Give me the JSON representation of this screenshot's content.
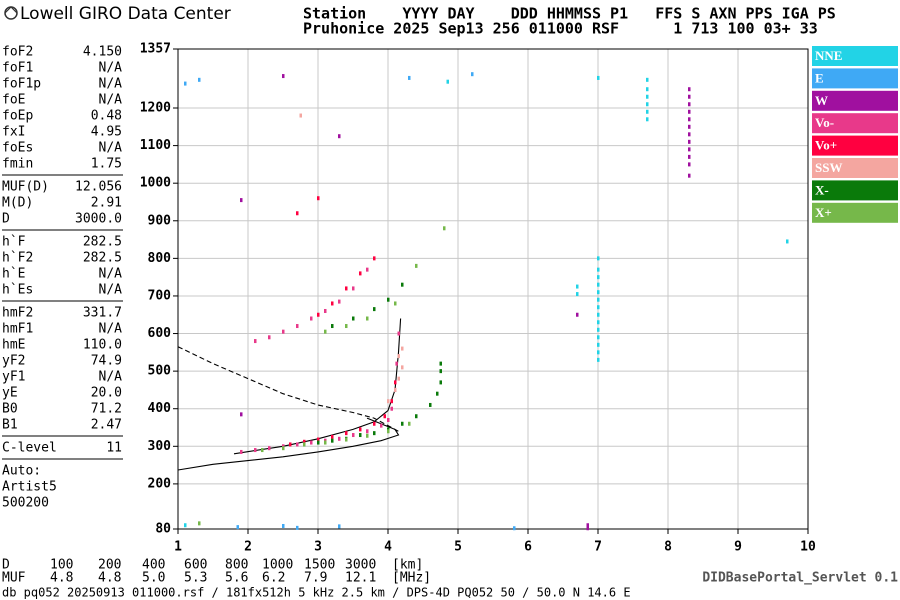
{
  "header": {
    "logo": "Lowell GIRO Data Center",
    "line1": "Station    YYYY DAY    DDD HHMMSS P1   FFS S AXN PPS IGA PS",
    "line2": "Pruhonice 2025 Sep13 256 011000 RSF      1 713 100 03+ 33"
  },
  "parameters": [
    [
      [
        "foF2",
        "4.150"
      ],
      [
        "foF1",
        "N/A"
      ],
      [
        "foF1p",
        "N/A"
      ],
      [
        "foE",
        "N/A"
      ],
      [
        "foEp",
        "0.48"
      ],
      [
        "fxI",
        "4.95"
      ],
      [
        "foEs",
        "N/A"
      ],
      [
        "fmin",
        "1.75"
      ]
    ],
    [
      [
        "MUF(D)",
        "12.056"
      ],
      [
        "M(D)",
        "2.91"
      ],
      [
        "D",
        "3000.0"
      ]
    ],
    [
      [
        "h`F",
        "282.5"
      ],
      [
        "h`F2",
        "282.5"
      ],
      [
        "h`E",
        "N/A"
      ],
      [
        "h`Es",
        "N/A"
      ]
    ],
    [
      [
        "hmF2",
        "331.7"
      ],
      [
        "hmF1",
        "N/A"
      ],
      [
        "hmE",
        "110.0"
      ],
      [
        "yF2",
        "74.9"
      ],
      [
        "yF1",
        "N/A"
      ],
      [
        "yE",
        "20.0"
      ],
      [
        "B0",
        "71.2"
      ],
      [
        "B1",
        "2.47"
      ]
    ],
    [
      [
        "C-level",
        "11"
      ]
    ]
  ],
  "notes": [
    "Auto:",
    "Artist5",
    "500200"
  ],
  "scale_rows": [
    {
      "label": "D",
      "values": [
        "100",
        "200",
        "400",
        "600",
        "800",
        "1000",
        "1500",
        "3000"
      ],
      "unit": "[km]"
    },
    {
      "label": "MUF",
      "values": [
        "4.8",
        "4.8",
        "5.0",
        "5.3",
        "5.6",
        "6.2",
        "7.9",
        "12.1"
      ],
      "unit": "[MHz]"
    }
  ],
  "footer": {
    "left": "db pq052 20250913 011000.rsf / 181fx512h 5 kHz 2.5 km / DPS-4D PQ052 50 / 50.0 N 14.6 E",
    "right": "DIDBasePortal_Servlet 0.1"
  },
  "chart_data": {
    "type": "scatter",
    "xlim": [
      1,
      10
    ],
    "xticks": [
      1,
      2,
      3,
      4,
      5,
      6,
      7,
      8,
      9,
      10
    ],
    "ylim": [
      80,
      1357
    ],
    "yticks": [
      80,
      200,
      300,
      400,
      500,
      600,
      700,
      800,
      900,
      1000,
      1100,
      1200,
      1357
    ],
    "grid": true,
    "legend": "right",
    "series": [
      {
        "name": "NNE",
        "color": "#22d3e6",
        "x": [
          7,
          7,
          7,
          7,
          7,
          7,
          7,
          7,
          7,
          7,
          7,
          7,
          7,
          7,
          6.7,
          6.7,
          7.7,
          7.7,
          7.7,
          7.7,
          7.7,
          7.7,
          9.7,
          1.1,
          7.0,
          4.85
        ],
        "values": [
          530,
          550,
          570,
          590,
          610,
          630,
          650,
          670,
          690,
          710,
          730,
          750,
          770,
          800,
          705,
          725,
          1170,
          1190,
          1210,
          1230,
          1250,
          1275,
          845,
          90,
          1280,
          1270
        ]
      },
      {
        "name": "E",
        "color": "#3fa9f5",
        "x": [
          1.85,
          2.5,
          2.7,
          3.3,
          4.3,
          5.2,
          5.8,
          1.3,
          1.1
        ],
        "values": [
          85,
          88,
          83,
          87,
          1280,
          1290,
          82,
          1275,
          1265
        ]
      },
      {
        "name": "W",
        "color": "#a0109f",
        "x": [
          8.3,
          8.3,
          8.3,
          8.3,
          8.3,
          8.3,
          8.3,
          8.3,
          8.3,
          8.3,
          8.3,
          8.3,
          6.85,
          6.85,
          6.7,
          1.9,
          2.5,
          3.3,
          1.9
        ],
        "values": [
          1020,
          1050,
          1070,
          1090,
          1110,
          1130,
          1150,
          1170,
          1190,
          1210,
          1230,
          1250,
          82,
          90,
          650,
          955,
          1285,
          1125,
          385
        ]
      },
      {
        "name": "Vo-",
        "color": "#e8398a",
        "x": [
          1.9,
          2.1,
          2.3,
          2.5,
          2.7,
          2.9,
          3.1,
          3.3,
          3.5,
          3.7,
          3.9,
          4.0,
          4.05,
          4.1,
          4.12,
          4.15,
          2.1,
          2.3,
          2.5,
          2.7,
          2.9,
          3.1,
          3.3,
          3.5,
          3.7
        ],
        "values": [
          285,
          290,
          295,
          300,
          305,
          310,
          315,
          320,
          330,
          340,
          355,
          370,
          400,
          450,
          520,
          600,
          580,
          590,
          605,
          620,
          640,
          660,
          685,
          720,
          770
        ]
      },
      {
        "name": "Vo+",
        "color": "#ff0040",
        "x": [
          2.6,
          2.8,
          3.0,
          3.2,
          3.4,
          3.6,
          3.8,
          3.95,
          4.05,
          4.1,
          3.0,
          3.2,
          3.4,
          3.6,
          3.8,
          2.7,
          3.0
        ],
        "values": [
          305,
          312,
          318,
          325,
          335,
          345,
          360,
          380,
          420,
          470,
          650,
          680,
          720,
          760,
          800,
          920,
          960
        ]
      },
      {
        "name": "SSW",
        "color": "#f4a6a0",
        "x": [
          4.1,
          4.15,
          4.2,
          4.15,
          4.2,
          4.0,
          2.75
        ],
        "values": [
          450,
          480,
          510,
          540,
          560,
          420,
          1180
        ]
      },
      {
        "name": "X-",
        "color": "#0a7a0a",
        "x": [
          2.8,
          3.0,
          3.2,
          3.4,
          3.6,
          3.8,
          4.0,
          4.2,
          4.4,
          4.6,
          4.7,
          4.75,
          4.75,
          4.75,
          3.2,
          3.5,
          3.8,
          4.0,
          4.2
        ],
        "values": [
          305,
          310,
          315,
          320,
          330,
          335,
          345,
          360,
          380,
          410,
          440,
          470,
          500,
          520,
          620,
          640,
          665,
          690,
          730
        ]
      },
      {
        "name": "X+",
        "color": "#76b84a",
        "x": [
          2.2,
          2.5,
          2.8,
          3.1,
          3.4,
          3.7,
          4.0,
          4.3,
          3.1,
          3.4,
          3.7,
          4.1,
          4.4,
          1.3,
          4.8
        ],
        "values": [
          290,
          295,
          305,
          310,
          318,
          328,
          340,
          360,
          605,
          620,
          640,
          680,
          780,
          95,
          880
        ]
      }
    ],
    "profiles": [
      {
        "dashed": false,
        "x": [
          1,
          1.5,
          2,
          2.5,
          3,
          3.5,
          3.9,
          4.15,
          4.1,
          3.9,
          3.7
        ],
        "values": [
          237,
          252,
          262,
          272,
          285,
          300,
          315,
          330,
          345,
          360,
          375
        ]
      },
      {
        "dashed": false,
        "x": [
          1.8,
          2.5,
          3,
          3.5,
          3.8,
          4.0,
          4.1,
          4.15,
          4.18
        ],
        "values": [
          280,
          300,
          320,
          345,
          365,
          395,
          450,
          550,
          640
        ]
      },
      {
        "dashed": true,
        "x": [
          1,
          1.5,
          2,
          2.5,
          3,
          3.5,
          3.8,
          4.15
        ],
        "values": [
          565,
          520,
          480,
          440,
          410,
          390,
          375,
          340
        ]
      }
    ]
  }
}
